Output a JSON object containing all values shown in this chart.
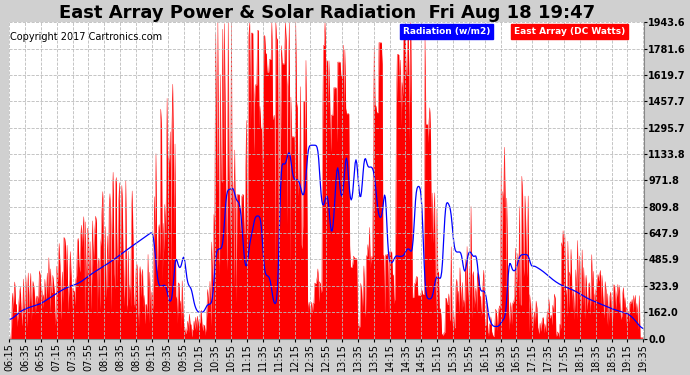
{
  "title": "East Array Power & Solar Radiation  Fri Aug 18 19:47",
  "copyright": "Copyright 2017 Cartronics.com",
  "legend_radiation": "Radiation (w/m2)",
  "legend_east": "East Array (DC Watts)",
  "background_color": "#d0d0d0",
  "plot_bg": "#ffffff",
  "grid_color": "#bbbbbb",
  "radiation_color": "#0000ff",
  "east_color": "#ff0000",
  "east_fill": "#ff0000",
  "ymax": 1943.6,
  "ymin": 0.0,
  "yticks": [
    0.0,
    162.0,
    323.9,
    485.9,
    647.9,
    809.8,
    971.8,
    1133.8,
    1295.7,
    1457.7,
    1619.7,
    1781.6,
    1943.6
  ],
  "title_fontsize": 13,
  "copyright_fontsize": 7,
  "tick_fontsize": 7,
  "xlabel_rotation": 90,
  "figwidth": 6.9,
  "figheight": 3.75,
  "dpi": 100
}
